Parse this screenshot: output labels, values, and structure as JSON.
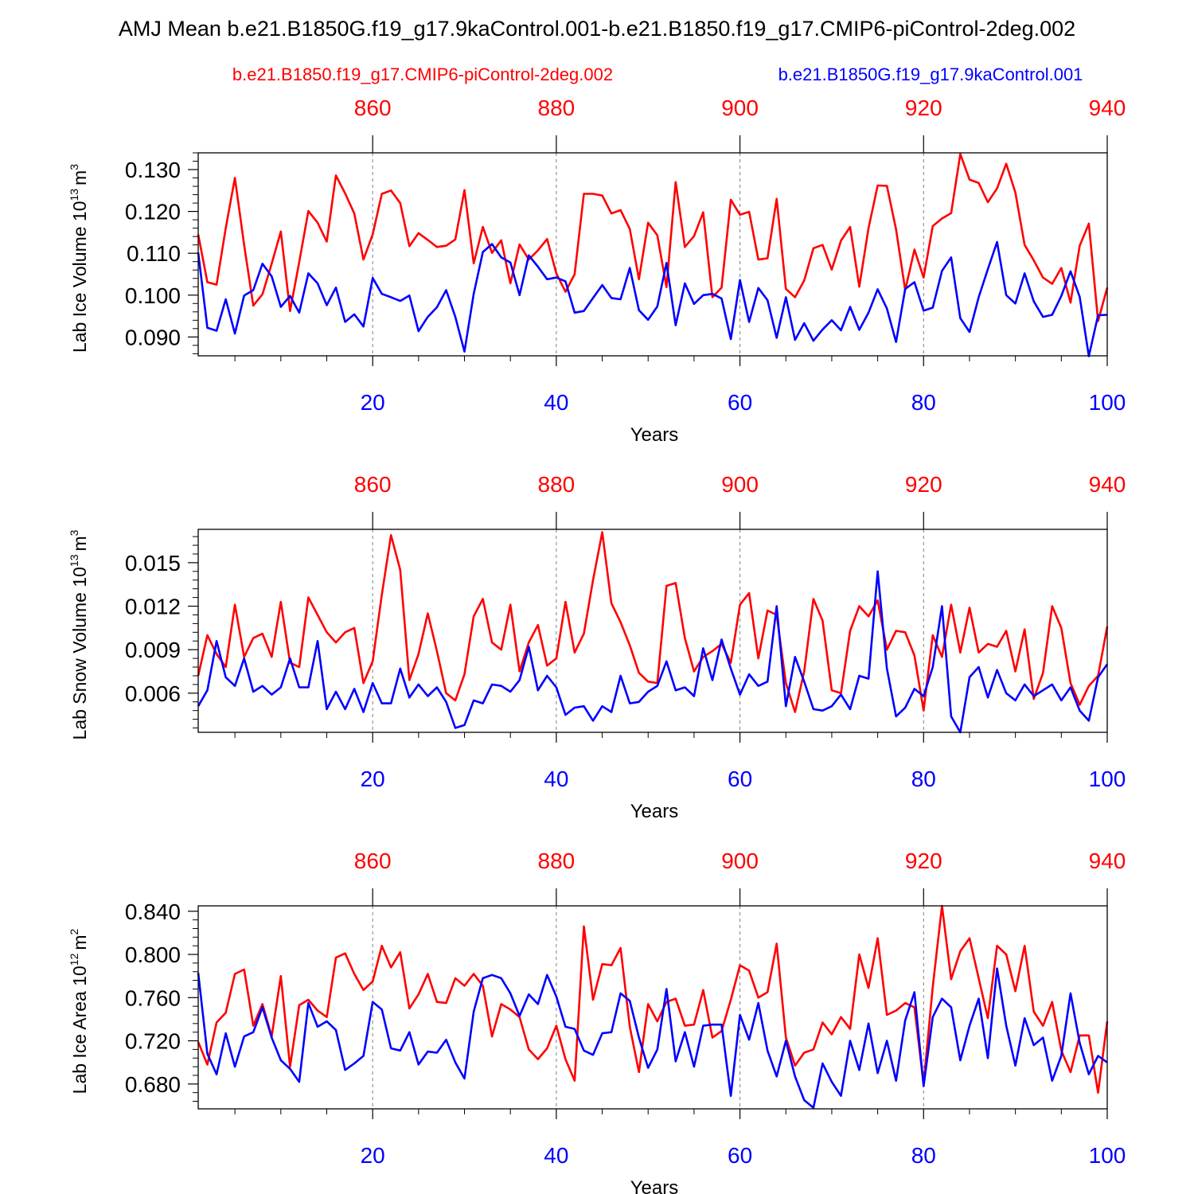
{
  "title": "AMJ Mean b.e21.B1850G.f19_g17.9kaControl.001-b.e21.B1850.f19_g17.CMIP6-piControl-2deg.002",
  "legend": {
    "red_label": "b.e21.B1850.f19_g17.CMIP6-piControl-2deg.002",
    "blue_label": "b.e21.B1850G.f19_g17.9kaControl.001"
  },
  "colors": {
    "red": "#ff0000",
    "blue": "#0000ff",
    "axis": "#000000",
    "grid": "#808080"
  },
  "chart_data": [
    {
      "type": "line",
      "name": "ice-volume",
      "ylabel": "Lab Ice Volume",
      "ylabel_unit_base": "10",
      "ylabel_unit_exp": "13",
      "ylabel_unit_tail": "m",
      "ylabel_unit_tail_exp": "3",
      "xlabel": "Years",
      "xlim": [
        1,
        100
      ],
      "ylim": [
        0.0855,
        0.134
      ],
      "yticks": [
        0.09,
        0.1,
        0.11,
        0.12,
        0.13
      ],
      "ytick_labels": [
        "0.090",
        "0.100",
        "0.110",
        "0.120",
        "0.130"
      ],
      "yminor_step": 0.002,
      "xticks": [
        20,
        40,
        60,
        80,
        100
      ],
      "top_xticks": [
        860,
        880,
        900,
        920,
        940
      ],
      "top_offset": 840,
      "series": [
        {
          "name": "b.e21.B1850.f19_g17.CMIP6-piControl-2deg.002",
          "color": "red",
          "values": [
            0.1145,
            0.1031,
            0.1025,
            0.116,
            0.128,
            0.112,
            0.0975,
            0.1002,
            0.1075,
            0.1152,
            0.0962,
            0.1079,
            0.1201,
            0.1173,
            0.1128,
            0.1286,
            0.1243,
            0.1195,
            0.1085,
            0.1145,
            0.1242,
            0.125,
            0.122,
            0.1117,
            0.1148,
            0.1132,
            0.1115,
            0.1118,
            0.1133,
            0.1251,
            0.1076,
            0.1163,
            0.1101,
            0.1131,
            0.1028,
            0.1121,
            0.1085,
            0.1107,
            0.1134,
            0.1052,
            0.1008,
            0.105,
            0.1242,
            0.1242,
            0.1238,
            0.1195,
            0.1203,
            0.1158,
            0.1038,
            0.1173,
            0.1143,
            0.1019,
            0.127,
            0.1115,
            0.1141,
            0.1198,
            0.0995,
            0.1018,
            0.1228,
            0.1192,
            0.1199,
            0.1085,
            0.1088,
            0.123,
            0.1015,
            0.0995,
            0.1035,
            0.1112,
            0.112,
            0.1061,
            0.113,
            0.1163,
            0.102,
            0.116,
            0.1262,
            0.1261,
            0.1157,
            0.1012,
            0.1109,
            0.1042,
            0.1165,
            0.1183,
            0.1196,
            0.1337,
            0.1276,
            0.1268,
            0.1222,
            0.1255,
            0.1314,
            0.1245,
            0.112,
            0.1083,
            0.1042,
            0.1027,
            0.1065,
            0.0982,
            0.1118,
            0.1171,
            0.0938,
            0.1018
          ]
        },
        {
          "name": "b.e21.B1850G.f19_g17.9kaControl.001",
          "color": "blue",
          "values": [
            0.1102,
            0.0922,
            0.0915,
            0.099,
            0.0908,
            0.0999,
            0.1012,
            0.1075,
            0.1045,
            0.0972,
            0.0998,
            0.0958,
            0.1052,
            0.1028,
            0.0976,
            0.1018,
            0.0936,
            0.0954,
            0.0925,
            0.1041,
            0.1003,
            0.0995,
            0.0986,
            0.0999,
            0.0914,
            0.0948,
            0.0971,
            0.1012,
            0.0948,
            0.0865,
            0.1003,
            0.1103,
            0.1122,
            0.109,
            0.1078,
            0.1,
            0.1095,
            0.1068,
            0.1038,
            0.1042,
            0.1033,
            0.0958,
            0.0962,
            0.0993,
            0.1024,
            0.0993,
            0.099,
            0.1065,
            0.0964,
            0.0941,
            0.0973,
            0.1077,
            0.0928,
            0.1028,
            0.0979,
            0.1,
            0.1003,
            0.0992,
            0.0895,
            0.1036,
            0.0936,
            0.1017,
            0.0988,
            0.0898,
            0.0995,
            0.0893,
            0.0933,
            0.0891,
            0.0918,
            0.094,
            0.0916,
            0.0972,
            0.0917,
            0.0958,
            0.1014,
            0.0968,
            0.0888,
            0.1015,
            0.1031,
            0.0963,
            0.097,
            0.1058,
            0.109,
            0.0945,
            0.0912,
            0.0995,
            0.1062,
            0.1127,
            0.1,
            0.098,
            0.1052,
            0.0985,
            0.0948,
            0.0953,
            0.0998,
            0.1057,
            0.0996,
            0.0854,
            0.0952,
            0.0953
          ]
        }
      ]
    },
    {
      "type": "line",
      "name": "snow-volume",
      "ylabel": "Lab Snow Volume",
      "ylabel_unit_base": "10",
      "ylabel_unit_exp": "13",
      "ylabel_unit_tail": "m",
      "ylabel_unit_tail_exp": "3",
      "xlabel": "Years",
      "xlim": [
        1,
        100
      ],
      "ylim": [
        0.0033,
        0.0173
      ],
      "yticks": [
        0.006,
        0.009,
        0.012,
        0.015
      ],
      "ytick_labels": [
        "0.006",
        "0.009",
        "0.012",
        "0.015"
      ],
      "yminor_step": 0.0006,
      "xticks": [
        20,
        40,
        60,
        80,
        100
      ],
      "top_xticks": [
        860,
        880,
        900,
        920,
        940
      ],
      "top_offset": 840,
      "series": [
        {
          "name": "b.e21.B1850.f19_g17.CMIP6-piControl-2deg.002",
          "color": "red",
          "values": [
            0.0072,
            0.01,
            0.0087,
            0.0078,
            0.0121,
            0.0085,
            0.0098,
            0.0101,
            0.0085,
            0.0123,
            0.0081,
            0.0078,
            0.0126,
            0.0114,
            0.0102,
            0.0095,
            0.0102,
            0.0105,
            0.0067,
            0.0082,
            0.0128,
            0.0169,
            0.0145,
            0.0069,
            0.0087,
            0.0115,
            0.0089,
            0.006,
            0.0055,
            0.0073,
            0.0113,
            0.0125,
            0.0095,
            0.009,
            0.0121,
            0.0075,
            0.0095,
            0.0107,
            0.0079,
            0.0084,
            0.0123,
            0.0088,
            0.0101,
            0.0138,
            0.0171,
            0.0122,
            0.0109,
            0.0093,
            0.0074,
            0.0068,
            0.0067,
            0.0134,
            0.0136,
            0.0098,
            0.0075,
            0.0085,
            0.0089,
            0.0094,
            0.0081,
            0.0121,
            0.0129,
            0.0084,
            0.0117,
            0.0114,
            0.0067,
            0.0047,
            0.0075,
            0.0125,
            0.011,
            0.0062,
            0.006,
            0.0103,
            0.012,
            0.0113,
            0.0124,
            0.009,
            0.0103,
            0.0102,
            0.0086,
            0.0048,
            0.01,
            0.0085,
            0.0121,
            0.0088,
            0.0119,
            0.0088,
            0.0094,
            0.0092,
            0.0103,
            0.0075,
            0.0104,
            0.0056,
            0.0074,
            0.012,
            0.0105,
            0.0067,
            0.0052,
            0.0065,
            0.0072,
            0.0106
          ]
        },
        {
          "name": "b.e21.B1850G.f19_g17.9kaControl.001",
          "color": "blue",
          "values": [
            0.0051,
            0.0062,
            0.0096,
            0.0071,
            0.0065,
            0.0084,
            0.0061,
            0.0065,
            0.0059,
            0.0064,
            0.0084,
            0.0064,
            0.0064,
            0.0096,
            0.0049,
            0.0061,
            0.0049,
            0.0063,
            0.0047,
            0.0067,
            0.0053,
            0.0053,
            0.0077,
            0.0057,
            0.0066,
            0.0058,
            0.0064,
            0.0054,
            0.0036,
            0.0038,
            0.0055,
            0.0053,
            0.0066,
            0.0065,
            0.0061,
            0.0069,
            0.0092,
            0.0062,
            0.0072,
            0.0064,
            0.0045,
            0.005,
            0.0051,
            0.0041,
            0.0051,
            0.0047,
            0.0072,
            0.0053,
            0.0054,
            0.0061,
            0.0065,
            0.0082,
            0.0062,
            0.0064,
            0.0058,
            0.0091,
            0.0069,
            0.0097,
            0.0077,
            0.0059,
            0.0073,
            0.0065,
            0.0068,
            0.012,
            0.0051,
            0.0085,
            0.0068,
            0.0049,
            0.0048,
            0.0051,
            0.0059,
            0.0049,
            0.0072,
            0.007,
            0.0144,
            0.0077,
            0.0044,
            0.005,
            0.0063,
            0.0058,
            0.0078,
            0.012,
            0.0044,
            0.0033,
            0.0071,
            0.0078,
            0.0057,
            0.0076,
            0.006,
            0.0055,
            0.0066,
            0.0058,
            0.0062,
            0.0066,
            0.0055,
            0.0064,
            0.0048,
            0.0041,
            0.0071,
            0.008
          ]
        }
      ]
    },
    {
      "type": "line",
      "name": "ice-area",
      "ylabel": "Lab Ice Area",
      "ylabel_unit_base": "10",
      "ylabel_unit_exp": "12",
      "ylabel_unit_tail": "m",
      "ylabel_unit_tail_exp": "2",
      "xlabel": "Years",
      "xlim": [
        1,
        100
      ],
      "ylim": [
        0.657,
        0.845
      ],
      "yticks": [
        0.68,
        0.72,
        0.76,
        0.8,
        0.84
      ],
      "ytick_labels": [
        "0.680",
        "0.720",
        "0.760",
        "0.800",
        "0.840"
      ],
      "yminor_step": 0.008,
      "xticks": [
        20,
        40,
        60,
        80,
        100
      ],
      "top_xticks": [
        860,
        880,
        900,
        920,
        940
      ],
      "top_offset": 840,
      "series": [
        {
          "name": "b.e21.B1850.f19_g17.CMIP6-piControl-2deg.002",
          "color": "red",
          "values": [
            0.719,
            0.698,
            0.737,
            0.746,
            0.782,
            0.786,
            0.734,
            0.754,
            0.724,
            0.78,
            0.696,
            0.753,
            0.758,
            0.748,
            0.742,
            0.797,
            0.801,
            0.782,
            0.767,
            0.775,
            0.808,
            0.788,
            0.802,
            0.75,
            0.763,
            0.782,
            0.756,
            0.755,
            0.778,
            0.771,
            0.782,
            0.771,
            0.724,
            0.754,
            0.749,
            0.742,
            0.712,
            0.703,
            0.713,
            0.734,
            0.703,
            0.683,
            0.826,
            0.758,
            0.791,
            0.79,
            0.806,
            0.733,
            0.691,
            0.754,
            0.738,
            0.756,
            0.759,
            0.734,
            0.735,
            0.767,
            0.723,
            0.729,
            0.758,
            0.79,
            0.785,
            0.76,
            0.765,
            0.81,
            0.723,
            0.697,
            0.709,
            0.712,
            0.737,
            0.726,
            0.742,
            0.731,
            0.8,
            0.769,
            0.815,
            0.744,
            0.748,
            0.755,
            0.751,
            0.68,
            0.77,
            0.845,
            0.777,
            0.803,
            0.815,
            0.778,
            0.741,
            0.808,
            0.8,
            0.766,
            0.808,
            0.747,
            0.734,
            0.756,
            0.711,
            0.691,
            0.725,
            0.725,
            0.672,
            0.738
          ]
        },
        {
          "name": "b.e21.B1850G.f19_g17.9kaControl.001",
          "color": "blue",
          "values": [
            0.783,
            0.708,
            0.689,
            0.727,
            0.696,
            0.724,
            0.728,
            0.751,
            0.723,
            0.702,
            0.694,
            0.682,
            0.755,
            0.733,
            0.738,
            0.73,
            0.693,
            0.699,
            0.706,
            0.756,
            0.749,
            0.713,
            0.711,
            0.728,
            0.698,
            0.71,
            0.709,
            0.721,
            0.7,
            0.685,
            0.747,
            0.778,
            0.781,
            0.778,
            0.764,
            0.743,
            0.763,
            0.754,
            0.781,
            0.761,
            0.733,
            0.731,
            0.711,
            0.707,
            0.727,
            0.728,
            0.764,
            0.757,
            0.723,
            0.695,
            0.712,
            0.768,
            0.701,
            0.728,
            0.696,
            0.734,
            0.735,
            0.735,
            0.669,
            0.744,
            0.721,
            0.755,
            0.711,
            0.687,
            0.72,
            0.687,
            0.665,
            0.658,
            0.699,
            0.682,
            0.669,
            0.72,
            0.693,
            0.736,
            0.69,
            0.72,
            0.683,
            0.739,
            0.765,
            0.678,
            0.742,
            0.759,
            0.751,
            0.702,
            0.734,
            0.759,
            0.704,
            0.787,
            0.734,
            0.697,
            0.741,
            0.716,
            0.723,
            0.683,
            0.706,
            0.764,
            0.718,
            0.689,
            0.706,
            0.7
          ]
        }
      ]
    }
  ]
}
